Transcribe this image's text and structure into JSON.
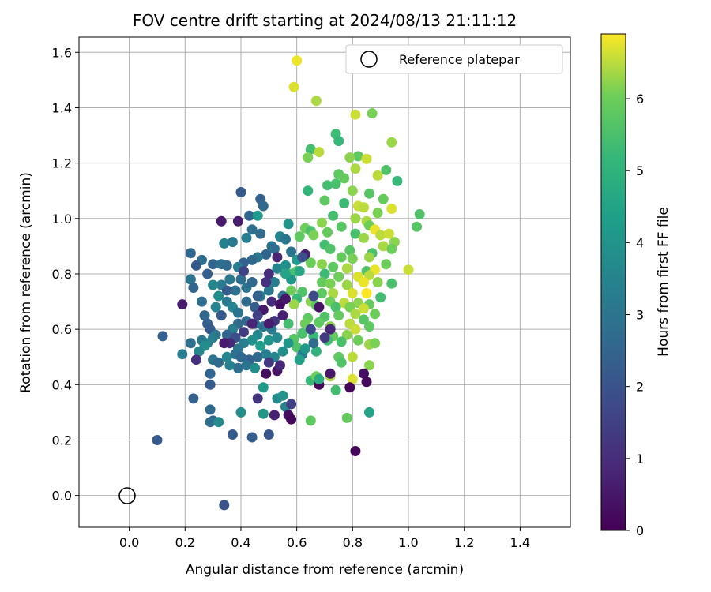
{
  "chart_data": {
    "type": "scatter",
    "title": "FOV centre drift starting at 2024/08/13 21:11:12",
    "xlabel": "Angular distance from reference (arcmin)",
    "ylabel": "Rotation from reference (arcmin)",
    "xlim": [
      -0.18,
      1.58
    ],
    "ylim": [
      -0.115,
      1.655
    ],
    "xticks": [
      "0.0",
      "0.2",
      "0.4",
      "0.6",
      "0.8",
      "1.0",
      "1.2",
      "1.4"
    ],
    "yticks": [
      "0.0",
      "0.2",
      "0.4",
      "0.6",
      "0.8",
      "1.0",
      "1.2",
      "1.4",
      "1.6"
    ],
    "grid": true,
    "legend": {
      "position": "top-right",
      "entries": [
        "Reference platepar"
      ]
    },
    "reference_point": {
      "x": 0.0,
      "y": 0.0,
      "label": "Reference platepar"
    },
    "colorbar": {
      "label": "Hours from first FF file",
      "colormap": "viridis",
      "range": [
        0,
        6.9
      ],
      "ticks": [
        "0",
        "1",
        "2",
        "3",
        "4",
        "5",
        "6"
      ]
    },
    "points": [
      [
        0.6,
        1.57,
        6.8
      ],
      [
        0.59,
        1.475,
        6.7
      ],
      [
        0.67,
        1.425,
        6.4
      ],
      [
        0.81,
        1.375,
        6.6
      ],
      [
        0.87,
        1.38,
        6.1
      ],
      [
        0.74,
        1.305,
        5.3
      ],
      [
        0.75,
        1.28,
        5.2
      ],
      [
        0.94,
        1.275,
        6.3
      ],
      [
        0.65,
        1.25,
        5.4
      ],
      [
        0.68,
        1.24,
        6.5
      ],
      [
        0.64,
        1.22,
        6.1
      ],
      [
        0.82,
        1.225,
        5.8
      ],
      [
        0.85,
        1.215,
        6.6
      ],
      [
        0.79,
        1.22,
        6.2
      ],
      [
        0.81,
        1.18,
        6.4
      ],
      [
        0.92,
        1.175,
        5.6
      ],
      [
        0.75,
        1.16,
        5.8
      ],
      [
        0.77,
        1.145,
        5.9
      ],
      [
        0.89,
        1.155,
        6.5
      ],
      [
        0.96,
        1.135,
        5.2
      ],
      [
        0.74,
        1.125,
        5.5
      ],
      [
        0.71,
        1.12,
        5.4
      ],
      [
        0.64,
        1.1,
        5.1
      ],
      [
        0.8,
        1.1,
        6.2
      ],
      [
        0.86,
        1.09,
        5.7
      ],
      [
        0.91,
        1.07,
        5.9
      ],
      [
        0.7,
        1.065,
        5.8
      ],
      [
        0.77,
        1.055,
        5.3
      ],
      [
        0.82,
        1.045,
        6.6
      ],
      [
        0.84,
        1.04,
        6.5
      ],
      [
        0.94,
        1.035,
        6.7
      ],
      [
        0.89,
        1.02,
        6.1
      ],
      [
        1.04,
        1.015,
        5.6
      ],
      [
        0.73,
        1.01,
        5.4
      ],
      [
        0.81,
        1.0,
        6.3
      ],
      [
        0.85,
        0.99,
        6.4
      ],
      [
        0.69,
        0.985,
        6.2
      ],
      [
        0.76,
        0.97,
        5.7
      ],
      [
        0.86,
        0.975,
        6.0
      ],
      [
        0.88,
        0.96,
        6.8
      ],
      [
        0.63,
        0.965,
        6.0
      ],
      [
        0.65,
        0.955,
        5.5
      ],
      [
        0.71,
        0.95,
        5.9
      ],
      [
        0.81,
        0.945,
        5.5
      ],
      [
        0.9,
        0.94,
        6.5
      ],
      [
        0.93,
        0.945,
        6.6
      ],
      [
        0.61,
        0.935,
        5.8
      ],
      [
        0.66,
        0.94,
        6.1
      ],
      [
        0.84,
        0.93,
        6.3
      ],
      [
        0.95,
        0.915,
        6.2
      ],
      [
        0.7,
        0.905,
        5.4
      ],
      [
        0.72,
        0.89,
        5.6
      ],
      [
        0.79,
        0.885,
        5.7
      ],
      [
        0.87,
        0.875,
        5.5
      ],
      [
        0.91,
        0.9,
        6.4
      ],
      [
        0.94,
        0.89,
        6.0
      ],
      [
        1.03,
        0.97,
        5.7
      ],
      [
        0.76,
        0.86,
        5.9
      ],
      [
        0.8,
        0.855,
        6.1
      ],
      [
        0.86,
        0.86,
        6.3
      ],
      [
        0.65,
        0.84,
        6.0
      ],
      [
        0.69,
        0.835,
        6.2
      ],
      [
        0.73,
        0.825,
        5.8
      ],
      [
        0.78,
        0.82,
        6.4
      ],
      [
        0.85,
        0.81,
        5.6
      ],
      [
        0.88,
        0.815,
        6.8
      ],
      [
        0.92,
        0.835,
        6.0
      ],
      [
        1.0,
        0.815,
        6.6
      ],
      [
        0.6,
        0.81,
        5.7
      ],
      [
        0.58,
        0.8,
        5.5
      ],
      [
        0.7,
        0.8,
        5.3
      ],
      [
        0.75,
        0.79,
        6.0
      ],
      [
        0.82,
        0.79,
        6.7
      ],
      [
        0.86,
        0.795,
        6.5
      ],
      [
        0.69,
        0.77,
        5.9
      ],
      [
        0.72,
        0.765,
        6.1
      ],
      [
        0.78,
        0.76,
        6.3
      ],
      [
        0.84,
        0.77,
        6.8
      ],
      [
        0.89,
        0.77,
        6.2
      ],
      [
        0.94,
        0.765,
        5.5
      ],
      [
        0.58,
        0.74,
        6.0
      ],
      [
        0.62,
        0.735,
        5.6
      ],
      [
        0.69,
        0.73,
        5.8
      ],
      [
        0.73,
        0.73,
        6.4
      ],
      [
        0.8,
        0.73,
        6.7
      ],
      [
        0.85,
        0.73,
        6.9
      ],
      [
        0.9,
        0.715,
        5.4
      ],
      [
        0.6,
        0.71,
        5.2
      ],
      [
        0.65,
        0.7,
        6.2
      ],
      [
        0.72,
        0.7,
        6.0
      ],
      [
        0.77,
        0.695,
        6.5
      ],
      [
        0.82,
        0.695,
        6.2
      ],
      [
        0.86,
        0.69,
        5.9
      ],
      [
        0.59,
        0.69,
        6.3
      ],
      [
        0.67,
        0.685,
        5.7
      ],
      [
        0.74,
        0.68,
        5.5
      ],
      [
        0.79,
        0.68,
        6.1
      ],
      [
        0.84,
        0.675,
        6.6
      ],
      [
        0.88,
        0.655,
        6.0
      ],
      [
        0.64,
        0.64,
        5.8
      ],
      [
        0.7,
        0.645,
        5.6
      ],
      [
        0.75,
        0.65,
        5.9
      ],
      [
        0.81,
        0.655,
        6.4
      ],
      [
        0.84,
        0.635,
        5.7
      ],
      [
        0.57,
        0.62,
        5.4
      ],
      [
        0.63,
        0.62,
        6.0
      ],
      [
        0.68,
        0.625,
        5.8
      ],
      [
        0.72,
        0.61,
        6.2
      ],
      [
        0.79,
        0.62,
        6.5
      ],
      [
        0.81,
        0.6,
        6.6
      ],
      [
        0.86,
        0.61,
        5.8
      ],
      [
        0.62,
        0.585,
        5.5
      ],
      [
        0.66,
        0.575,
        5.2
      ],
      [
        0.73,
        0.575,
        5.9
      ],
      [
        0.78,
        0.58,
        6.2
      ],
      [
        0.59,
        0.565,
        5.7
      ],
      [
        0.71,
        0.56,
        5.3
      ],
      [
        0.76,
        0.555,
        5.5
      ],
      [
        0.82,
        0.56,
        6.0
      ],
      [
        0.86,
        0.545,
        6.3
      ],
      [
        0.88,
        0.55,
        6.1
      ],
      [
        0.6,
        0.535,
        5.6
      ],
      [
        0.67,
        0.52,
        5.0
      ],
      [
        0.75,
        0.5,
        5.8
      ],
      [
        0.8,
        0.5,
        6.5
      ],
      [
        0.86,
        0.47,
        6.2
      ],
      [
        0.76,
        0.48,
        5.6
      ],
      [
        0.72,
        0.43,
        6.4
      ],
      [
        0.65,
        0.415,
        5.2
      ],
      [
        0.74,
        0.38,
        5.4
      ],
      [
        0.8,
        0.42,
        6.7
      ],
      [
        0.78,
        0.28,
        5.9
      ],
      [
        0.65,
        0.27,
        5.8
      ],
      [
        0.86,
        0.3,
        4.5
      ],
      [
        0.67,
        0.43,
        6.0
      ],
      [
        0.22,
        0.875,
        2.6
      ],
      [
        0.26,
        0.85,
        2.8
      ],
      [
        0.24,
        0.83,
        2.2
      ],
      [
        0.28,
        0.8,
        2.3
      ],
      [
        0.3,
        0.835,
        2.5
      ],
      [
        0.33,
        0.835,
        2.9
      ],
      [
        0.34,
        0.91,
        3.4
      ],
      [
        0.37,
        0.915,
        3.2
      ],
      [
        0.42,
        0.93,
        3.3
      ],
      [
        0.43,
        1.01,
        2.5
      ],
      [
        0.4,
        1.095,
        2.2
      ],
      [
        0.47,
        1.07,
        2.4
      ],
      [
        0.48,
        1.045,
        2.6
      ],
      [
        0.46,
        1.01,
        4.2
      ],
      [
        0.44,
        0.96,
        2.9
      ],
      [
        0.47,
        0.945,
        2.7
      ],
      [
        0.51,
        0.9,
        3.0
      ],
      [
        0.54,
        0.935,
        3.5
      ],
      [
        0.56,
        0.925,
        3.1
      ],
      [
        0.58,
        0.88,
        3.0
      ],
      [
        0.57,
        0.98,
        4.0
      ],
      [
        0.52,
        0.89,
        2.8
      ],
      [
        0.49,
        0.87,
        2.5
      ],
      [
        0.46,
        0.86,
        3.1
      ],
      [
        0.44,
        0.85,
        2.6
      ],
      [
        0.41,
        0.84,
        2.4
      ],
      [
        0.39,
        0.825,
        3.3
      ],
      [
        0.35,
        0.83,
        2.7
      ],
      [
        0.33,
        0.76,
        3.2
      ],
      [
        0.3,
        0.76,
        3.6
      ],
      [
        0.26,
        0.7,
        2.8
      ],
      [
        0.22,
        0.78,
        3.0
      ],
      [
        0.23,
        0.75,
        2.5
      ],
      [
        0.19,
        0.69,
        0.6
      ],
      [
        0.27,
        0.65,
        2.6
      ],
      [
        0.28,
        0.62,
        2.4
      ],
      [
        0.29,
        0.6,
        2.2
      ],
      [
        0.31,
        0.58,
        3.0
      ],
      [
        0.3,
        0.57,
        3.3
      ],
      [
        0.28,
        0.55,
        3.5
      ],
      [
        0.26,
        0.56,
        3.1
      ],
      [
        0.27,
        0.54,
        3.8
      ],
      [
        0.25,
        0.52,
        3.6
      ],
      [
        0.22,
        0.55,
        2.9
      ],
      [
        0.19,
        0.51,
        3.3
      ],
      [
        0.24,
        0.49,
        1.1
      ],
      [
        0.3,
        0.49,
        3.0
      ],
      [
        0.32,
        0.48,
        2.7
      ],
      [
        0.29,
        0.44,
        2.5
      ],
      [
        0.29,
        0.4,
        2.2
      ],
      [
        0.23,
        0.35,
        2.4
      ],
      [
        0.29,
        0.31,
        2.6
      ],
      [
        0.3,
        0.27,
        2.5
      ],
      [
        0.29,
        0.265,
        2.8
      ],
      [
        0.32,
        0.265,
        3.7
      ],
      [
        0.37,
        0.22,
        2.2
      ],
      [
        0.44,
        0.21,
        2.3
      ],
      [
        0.5,
        0.22,
        2.1
      ],
      [
        0.4,
        0.3,
        3.8
      ],
      [
        0.12,
        0.575,
        2.4
      ],
      [
        0.1,
        0.2,
        2.2
      ],
      [
        0.34,
        -0.035,
        2.0
      ],
      [
        0.35,
        0.7,
        3.2
      ],
      [
        0.37,
        0.68,
        3.5
      ],
      [
        0.39,
        0.66,
        3.0
      ],
      [
        0.42,
        0.7,
        2.7
      ],
      [
        0.45,
        0.68,
        2.3
      ],
      [
        0.47,
        0.72,
        3.4
      ],
      [
        0.5,
        0.74,
        3.1
      ],
      [
        0.52,
        0.77,
        3.3
      ],
      [
        0.55,
        0.72,
        2.9
      ],
      [
        0.53,
        0.82,
        3.6
      ],
      [
        0.56,
        0.83,
        3.9
      ],
      [
        0.6,
        0.85,
        4.2
      ],
      [
        0.58,
        0.78,
        4.1
      ],
      [
        0.61,
        0.81,
        4.6
      ],
      [
        0.4,
        0.78,
        2.8
      ],
      [
        0.42,
        0.75,
        3.0
      ],
      [
        0.44,
        0.77,
        2.6
      ],
      [
        0.46,
        0.72,
        2.4
      ],
      [
        0.38,
        0.74,
        2.9
      ],
      [
        0.36,
        0.78,
        3.1
      ],
      [
        0.41,
        0.81,
        1.6
      ],
      [
        0.39,
        0.62,
        2.7
      ],
      [
        0.37,
        0.6,
        3.3
      ],
      [
        0.35,
        0.58,
        2.5
      ],
      [
        0.33,
        0.65,
        2.2
      ],
      [
        0.31,
        0.68,
        3.5
      ],
      [
        0.32,
        0.72,
        3.8
      ],
      [
        0.42,
        0.63,
        2.6
      ],
      [
        0.45,
        0.62,
        2.8
      ],
      [
        0.48,
        0.61,
        3.0
      ],
      [
        0.51,
        0.6,
        3.2
      ],
      [
        0.46,
        0.58,
        3.6
      ],
      [
        0.44,
        0.56,
        3.9
      ],
      [
        0.41,
        0.55,
        3.4
      ],
      [
        0.39,
        0.53,
        3.1
      ],
      [
        0.38,
        0.51,
        2.9
      ],
      [
        0.4,
        0.5,
        2.6
      ],
      [
        0.43,
        0.49,
        2.4
      ],
      [
        0.46,
        0.5,
        2.7
      ],
      [
        0.49,
        0.51,
        3.3
      ],
      [
        0.52,
        0.5,
        3.5
      ],
      [
        0.55,
        0.52,
        3.9
      ],
      [
        0.57,
        0.55,
        4.1
      ],
      [
        0.47,
        0.54,
        4.3
      ],
      [
        0.5,
        0.56,
        4.0
      ],
      [
        0.53,
        0.57,
        3.7
      ],
      [
        0.42,
        0.47,
        3.0
      ],
      [
        0.39,
        0.46,
        2.8
      ],
      [
        0.36,
        0.47,
        3.4
      ],
      [
        0.35,
        0.5,
        3.6
      ],
      [
        0.45,
        0.46,
        3.8
      ],
      [
        0.48,
        0.39,
        4.2
      ],
      [
        0.46,
        0.35,
        1.2
      ],
      [
        0.49,
        0.44,
        0.3
      ],
      [
        0.53,
        0.35,
        3.7
      ],
      [
        0.56,
        0.32,
        3.5
      ],
      [
        0.55,
        0.36,
        4.0
      ],
      [
        0.58,
        0.33,
        1.5
      ],
      [
        0.57,
        0.29,
        0.3
      ],
      [
        0.52,
        0.29,
        0.7
      ],
      [
        0.48,
        0.295,
        4.1
      ],
      [
        0.58,
        0.275,
        0.2
      ],
      [
        0.62,
        0.51,
        3.2
      ],
      [
        0.61,
        0.49,
        4.4
      ],
      [
        0.63,
        0.53,
        4.1
      ],
      [
        0.66,
        0.55,
        2.7
      ],
      [
        0.7,
        0.57,
        1.3
      ],
      [
        0.72,
        0.6,
        0.9
      ],
      [
        0.68,
        0.68,
        0.4
      ],
      [
        0.66,
        0.72,
        1.8
      ],
      [
        0.63,
        0.87,
        0.7
      ],
      [
        0.62,
        0.86,
        1.9
      ],
      [
        0.56,
        0.8,
        4.5
      ],
      [
        0.53,
        0.86,
        0.8
      ],
      [
        0.5,
        0.8,
        1.0
      ],
      [
        0.49,
        0.77,
        1.1
      ],
      [
        0.48,
        0.67,
        0.5
      ],
      [
        0.46,
        0.65,
        1.5
      ],
      [
        0.44,
        0.62,
        0.8
      ],
      [
        0.41,
        0.59,
        1.4
      ],
      [
        0.38,
        0.57,
        1.9
      ],
      [
        0.36,
        0.55,
        0.9
      ],
      [
        0.34,
        0.55,
        0.6
      ],
      [
        0.35,
        0.74,
        2.3
      ],
      [
        0.33,
        0.99,
        0.5
      ],
      [
        0.39,
        0.99,
        0.6
      ],
      [
        0.51,
        0.7,
        1.0
      ],
      [
        0.54,
        0.69,
        0.3
      ],
      [
        0.56,
        0.71,
        0.5
      ],
      [
        0.55,
        0.65,
        0.7
      ],
      [
        0.52,
        0.63,
        1.2
      ],
      [
        0.5,
        0.62,
        0.6
      ],
      [
        0.53,
        0.45,
        0.4
      ],
      [
        0.54,
        0.47,
        0.9
      ],
      [
        0.5,
        0.48,
        1.3
      ],
      [
        0.68,
        0.4,
        0.2
      ],
      [
        0.65,
        0.6,
        1.7
      ],
      [
        0.72,
        0.44,
        0.5
      ],
      [
        0.84,
        0.44,
        0.3
      ],
      [
        0.85,
        0.41,
        0.2
      ],
      [
        0.81,
        0.16,
        0.1
      ],
      [
        0.79,
        0.39,
        0.1
      ],
      [
        0.68,
        0.42,
        4.8
      ]
    ]
  }
}
